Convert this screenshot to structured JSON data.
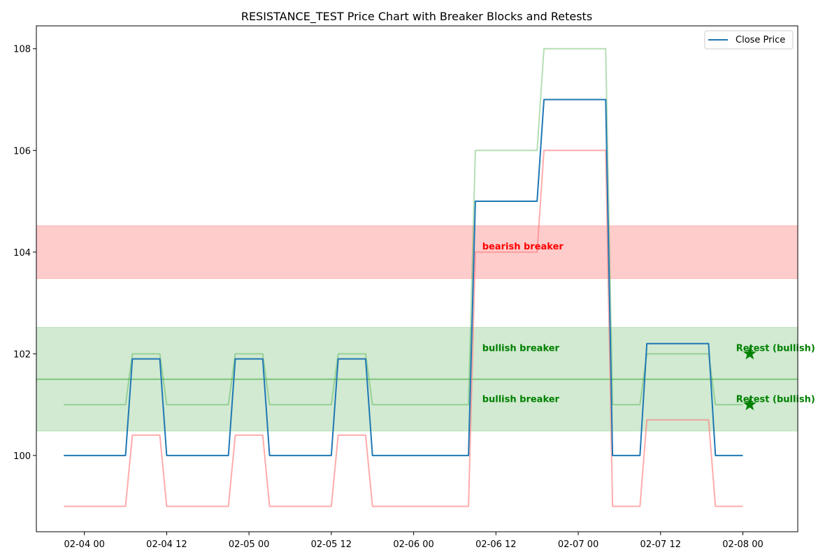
{
  "chart_data": {
    "type": "line",
    "title": "RESISTANCE_TEST Price Chart with Breaker Blocks and Retests",
    "xlabel": "",
    "ylabel": "",
    "x_start": "2024-02-03T21:00",
    "x_step_hours": 1,
    "xlim": [
      "2024-02-03T17:00",
      "2024-02-08T08:00"
    ],
    "ylim": [
      98.5,
      108.45
    ],
    "x_ticks": [
      {
        "t": "2024-02-04T00:00",
        "label": "02-04 00"
      },
      {
        "t": "2024-02-04T12:00",
        "label": "02-04 12"
      },
      {
        "t": "2024-02-05T00:00",
        "label": "02-05 00"
      },
      {
        "t": "2024-02-05T12:00",
        "label": "02-05 12"
      },
      {
        "t": "2024-02-06T00:00",
        "label": "02-06 00"
      },
      {
        "t": "2024-02-06T12:00",
        "label": "02-06 12"
      },
      {
        "t": "2024-02-07T00:00",
        "label": "02-07 00"
      },
      {
        "t": "2024-02-07T12:00",
        "label": "02-07 12"
      },
      {
        "t": "2024-02-08T00:00",
        "label": "02-08 00"
      }
    ],
    "y_ticks": [
      {
        "v": 100,
        "label": "100"
      },
      {
        "v": 102,
        "label": "102"
      },
      {
        "v": 104,
        "label": "104"
      },
      {
        "v": 106,
        "label": "106"
      },
      {
        "v": 108,
        "label": "108"
      }
    ],
    "grid": false,
    "legend": {
      "position": "top-right",
      "entries": [
        "Close Price"
      ]
    },
    "series": [
      {
        "name": "Close Price",
        "role": "close",
        "color": "#1f77b4",
        "values": [
          100,
          100,
          100,
          100,
          100,
          100,
          100,
          100,
          100,
          100,
          101.9,
          101.9,
          101.9,
          101.9,
          101.9,
          100,
          100,
          100,
          100,
          100,
          100,
          100,
          100,
          100,
          100,
          101.9,
          101.9,
          101.9,
          101.9,
          101.9,
          100,
          100,
          100,
          100,
          100,
          100,
          100,
          100,
          100,
          100,
          101.9,
          101.9,
          101.9,
          101.9,
          101.9,
          100,
          100,
          100,
          100,
          100,
          100,
          100,
          100,
          100,
          100,
          100,
          100,
          100,
          100,
          100,
          105,
          105,
          105,
          105,
          105,
          105,
          105,
          105,
          105,
          105,
          107,
          107,
          107,
          107,
          107,
          107,
          107,
          107,
          107,
          107,
          100,
          100,
          100,
          100,
          100,
          102.2,
          102.2,
          102.2,
          102.2,
          102.2,
          102.2,
          102.2,
          102.2,
          102.2,
          102.2,
          100,
          100,
          100,
          100,
          100
        ]
      },
      {
        "role": "high",
        "color": "#2ca02c",
        "opacity": 0.35,
        "values": [
          101,
          101,
          101,
          101,
          101,
          101,
          101,
          101,
          101,
          101,
          102,
          102,
          102,
          102,
          102,
          101,
          101,
          101,
          101,
          101,
          101,
          101,
          101,
          101,
          101,
          102,
          102,
          102,
          102,
          102,
          101,
          101,
          101,
          101,
          101,
          101,
          101,
          101,
          101,
          101,
          102,
          102,
          102,
          102,
          102,
          101,
          101,
          101,
          101,
          101,
          101,
          101,
          101,
          101,
          101,
          101,
          101,
          101,
          101,
          101,
          106,
          106,
          106,
          106,
          106,
          106,
          106,
          106,
          106,
          106,
          108,
          108,
          108,
          108,
          108,
          108,
          108,
          108,
          108,
          108,
          101,
          101,
          101,
          101,
          101,
          102,
          102,
          102,
          102,
          102,
          102,
          102,
          102,
          102,
          102,
          101,
          101,
          101,
          101,
          101
        ]
      },
      {
        "role": "low",
        "color": "#ff7f7f",
        "opacity": 0.65,
        "values": [
          99,
          99,
          99,
          99,
          99,
          99,
          99,
          99,
          99,
          99,
          100.4,
          100.4,
          100.4,
          100.4,
          100.4,
          99,
          99,
          99,
          99,
          99,
          99,
          99,
          99,
          99,
          99,
          100.4,
          100.4,
          100.4,
          100.4,
          100.4,
          99,
          99,
          99,
          99,
          99,
          99,
          99,
          99,
          99,
          99,
          100.4,
          100.4,
          100.4,
          100.4,
          100.4,
          99,
          99,
          99,
          99,
          99,
          99,
          99,
          99,
          99,
          99,
          99,
          99,
          99,
          99,
          99,
          104,
          104,
          104,
          104,
          104,
          104,
          104,
          104,
          104,
          104,
          106,
          106,
          106,
          106,
          106,
          106,
          106,
          106,
          106,
          106,
          99,
          99,
          99,
          99,
          99,
          100.7,
          100.7,
          100.7,
          100.7,
          100.7,
          100.7,
          100.7,
          100.7,
          100.7,
          100.7,
          99,
          99,
          99,
          99,
          99
        ]
      }
    ],
    "zones": [
      {
        "type": "bearish",
        "y0": 103.48,
        "y1": 104.52,
        "color": "#ff0000",
        "opacity": 0.2
      },
      {
        "type": "bullish",
        "y0": 100.48,
        "y1": 102.52,
        "color": "#2ca02c",
        "opacity": 0.22
      }
    ],
    "hlines": [
      {
        "y": 101.5,
        "color": "#2ca02c",
        "opacity": 0.5
      }
    ],
    "annotations": [
      {
        "text": "bearish breaker",
        "t": "2024-02-06T10:00",
        "y": 104.05,
        "color": "#ff0000"
      },
      {
        "text": "bullish breaker",
        "t": "2024-02-06T10:00",
        "y": 102.05,
        "color": "#008000"
      },
      {
        "text": "bullish breaker",
        "t": "2024-02-06T10:00",
        "y": 101.05,
        "color": "#008000"
      },
      {
        "text": "Retest (bullish)",
        "t": "2024-02-07T23:00",
        "y": 102.05,
        "color": "#008000"
      },
      {
        "text": "Retest (bullish)",
        "t": "2024-02-07T23:00",
        "y": 101.05,
        "color": "#008000"
      }
    ],
    "markers": [
      {
        "t": "2024-02-08T01:00",
        "y": 102,
        "symbol": "star",
        "color": "#008000"
      },
      {
        "t": "2024-02-08T01:00",
        "y": 101,
        "symbol": "star",
        "color": "#008000"
      }
    ]
  }
}
